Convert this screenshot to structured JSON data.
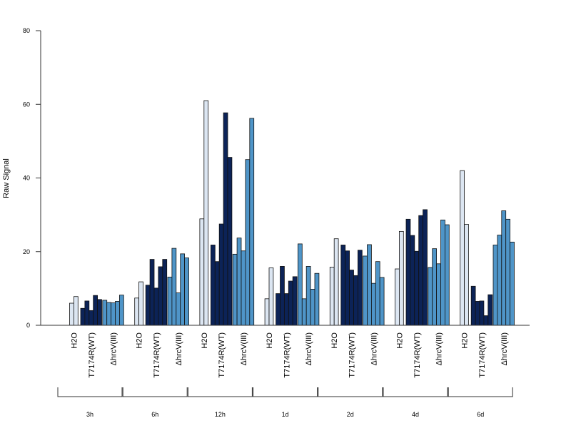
{
  "chart_data": {
    "type": "bar",
    "title": "",
    "xlabel": "",
    "ylabel": "Raw Signal",
    "ylim": [
      0,
      80
    ],
    "yticks": [
      0,
      20,
      40,
      60,
      80
    ],
    "grid": false,
    "legend": "none",
    "timepoints": [
      "3h",
      "6h",
      "12h",
      "1d",
      "2d",
      "4d",
      "6d"
    ],
    "treatments": [
      "H2O",
      "T7174R(WT)",
      "ΔhrcV(III)"
    ],
    "colors": {
      "H2O": "#dce6f2",
      "T7174R(WT)": "#0c2357",
      "ΔhrcV(III)": "#4f95c8"
    },
    "groups": [
      {
        "timepoint": "3h",
        "values": {
          "H2O": [
            6,
            7.8
          ],
          "T7174R(WT)": [
            4.6,
            6.6,
            4,
            8.1,
            7
          ],
          "ΔhrcV(III)": [
            6.8,
            6.2,
            6.1,
            6.5,
            8.2
          ]
        }
      },
      {
        "timepoint": "6h",
        "values": {
          "H2O": [
            7.4,
            11.8
          ],
          "T7174R(WT)": [
            10.9,
            17.9,
            10.1,
            15.9,
            17.9
          ],
          "ΔhrcV(III)": [
            13.1,
            20.9,
            8.8,
            19.4,
            18.3
          ]
        }
      },
      {
        "timepoint": "12h",
        "values": {
          "H2O": [
            28.9,
            61
          ],
          "T7174R(WT)": [
            21.8,
            17.3,
            27.5,
            57.7,
            45.6
          ],
          "ΔhrcV(III)": [
            19.3,
            23.7,
            20.2,
            45,
            56.2
          ]
        }
      },
      {
        "timepoint": "1d",
        "values": {
          "H2O": [
            7.2,
            15.6
          ],
          "T7174R(WT)": [
            8.6,
            16,
            8.6,
            12,
            13.2
          ],
          "ΔhrcV(III)": [
            22.1,
            7.2,
            16,
            9.8,
            14.1
          ]
        }
      },
      {
        "timepoint": "2d",
        "values": {
          "H2O": [
            15.8,
            23.5
          ],
          "T7174R(WT)": [
            21.8,
            20.2,
            15,
            13.5,
            20.4
          ],
          "ΔhrcV(III)": [
            18.8,
            21.9,
            11.4,
            17.3,
            13
          ]
        }
      },
      {
        "timepoint": "4d",
        "values": {
          "H2O": [
            15.3,
            25.5
          ],
          "T7174R(WT)": [
            28.8,
            24.4,
            20.1,
            29.8,
            31.4
          ],
          "ΔhrcV(III)": [
            15.7,
            20.8,
            16.7,
            28.6,
            27.3
          ]
        }
      },
      {
        "timepoint": "6d",
        "values": {
          "H2O": [
            42,
            27.4
          ],
          "T7174R(WT)": [
            10.6,
            6.5,
            6.6,
            2.6,
            8.3
          ],
          "ΔhrcV(III)": [
            21.8,
            24.5,
            31.1,
            28.8,
            22.6
          ]
        }
      }
    ]
  }
}
